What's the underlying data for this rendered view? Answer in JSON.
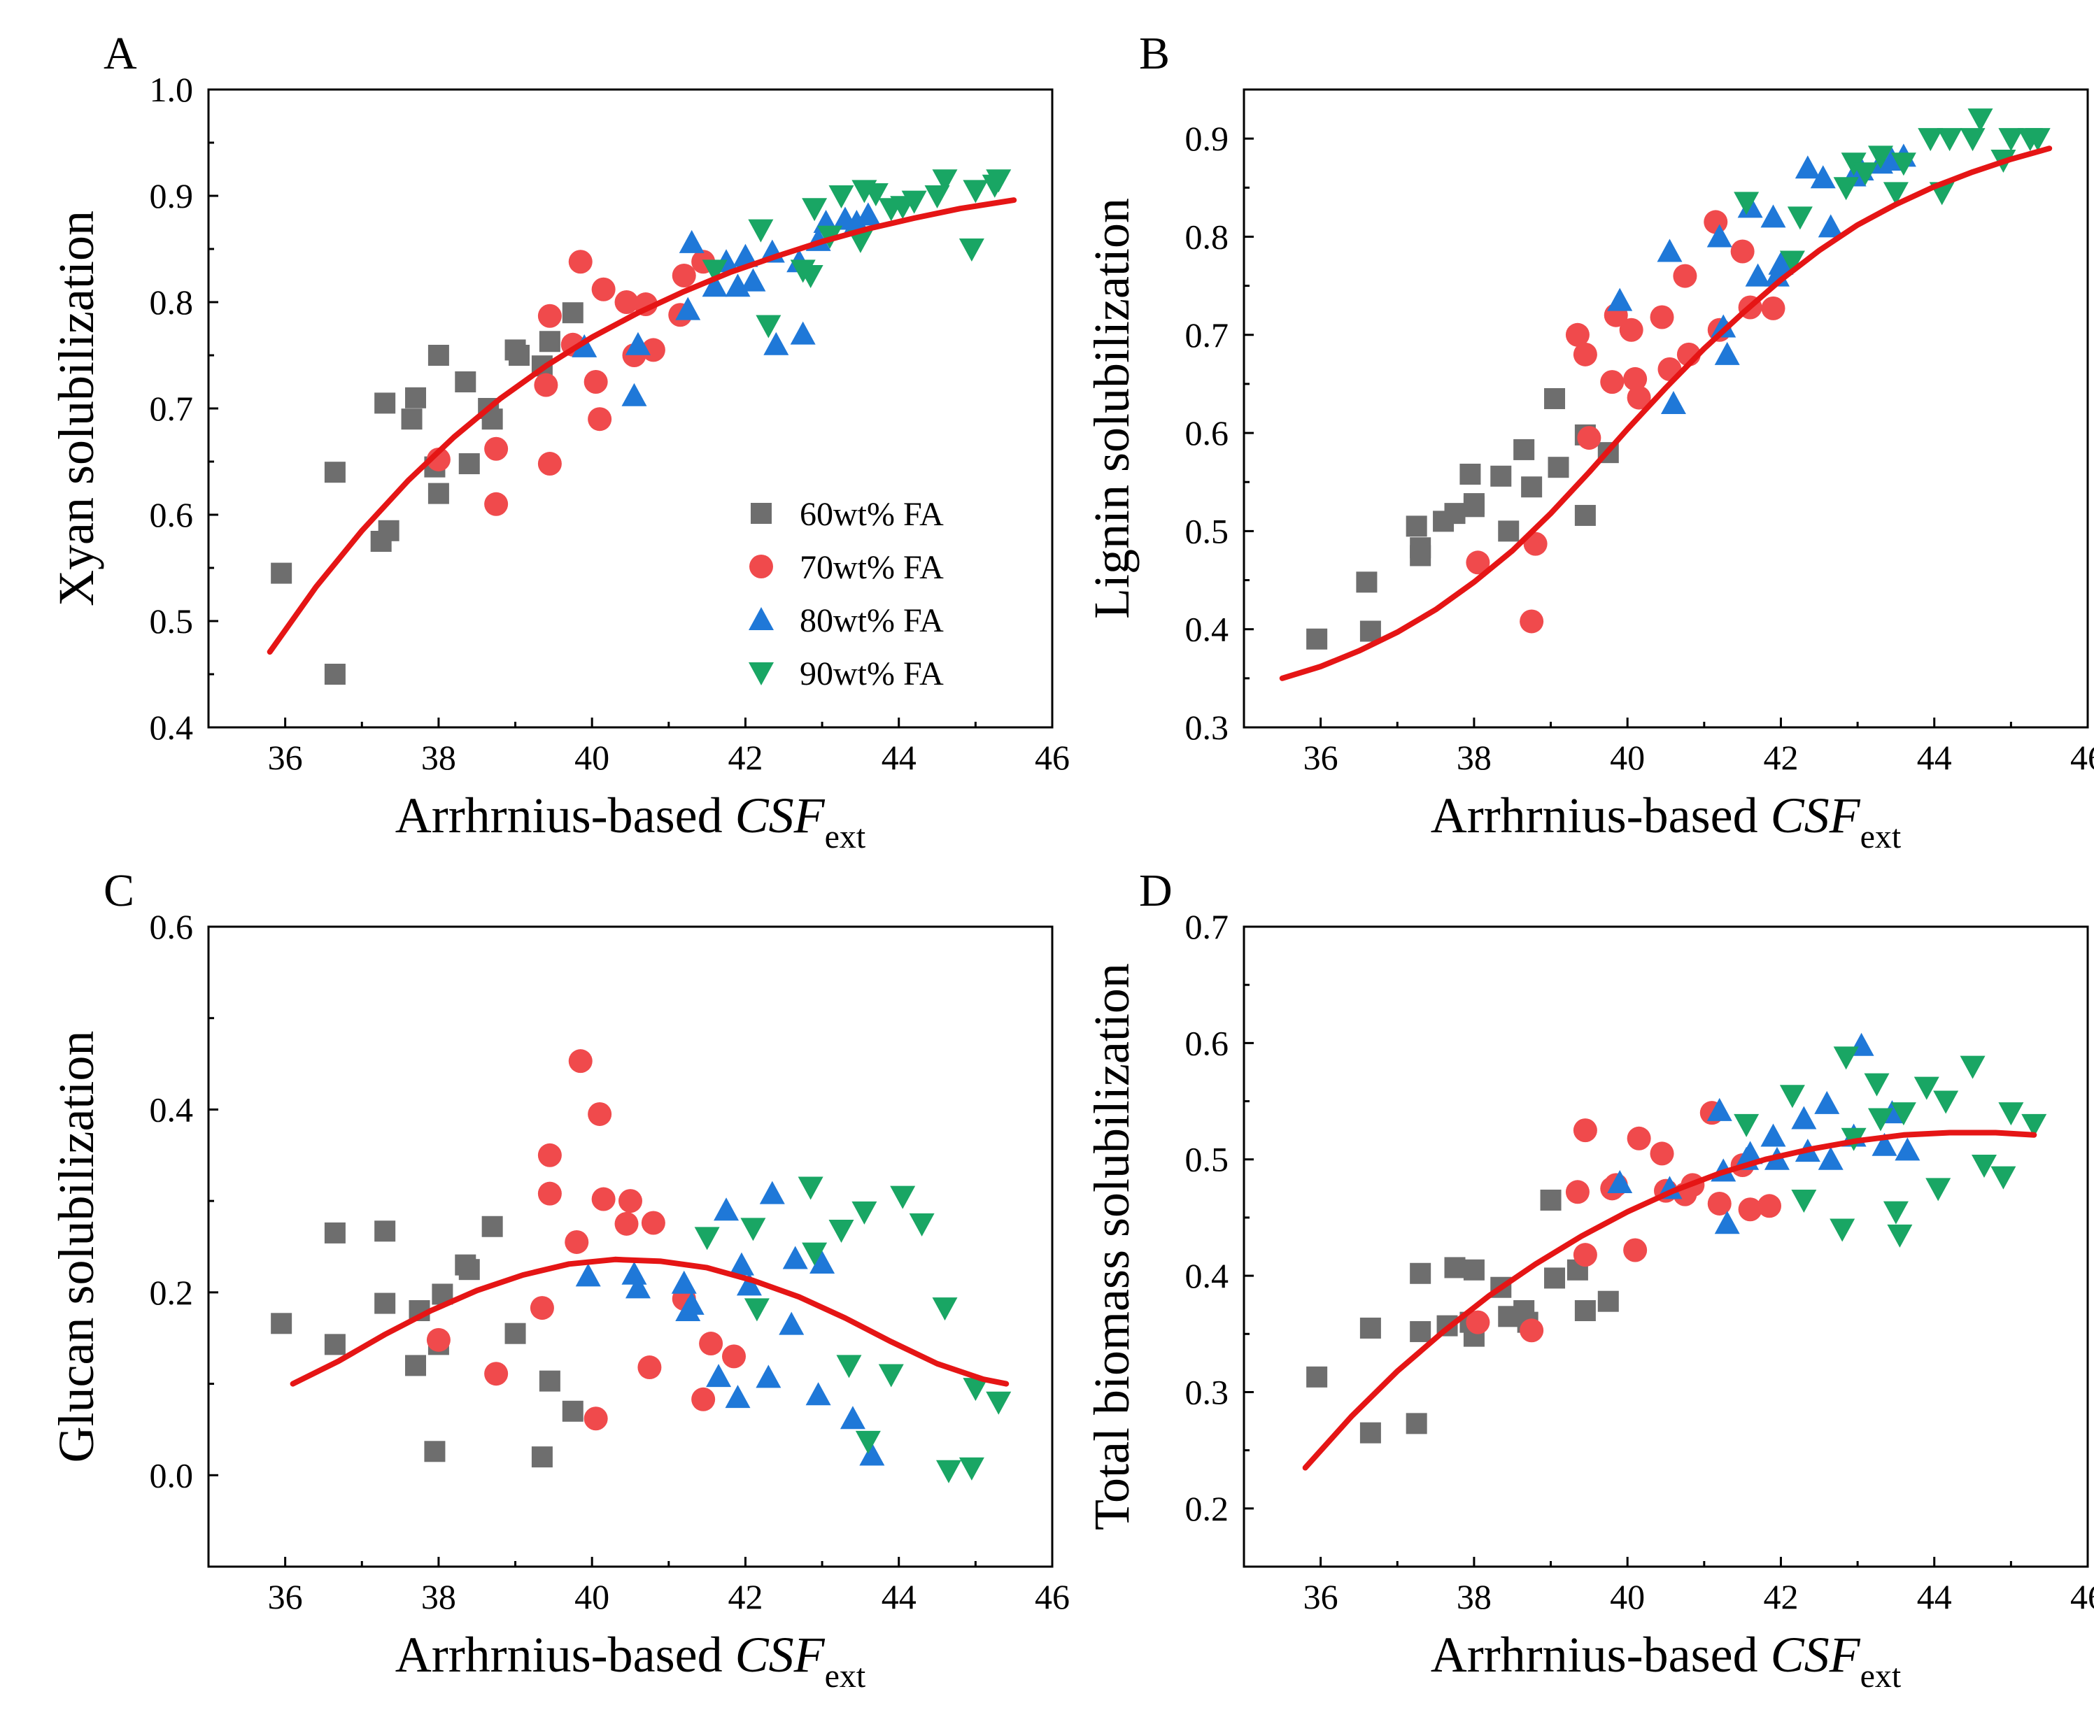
{
  "figure": {
    "colors": {
      "60wt% FA": "#6e6e6e",
      "70wt% FA": "#f04a4c",
      "80wt% FA": "#1f78d8",
      "90wt% FA": "#19a664",
      "fit": "#e51515"
    },
    "legend": {
      "panel": "A",
      "entries": [
        {
          "name": "60wt% FA",
          "marker": "square"
        },
        {
          "name": "70wt% FA",
          "marker": "circle"
        },
        {
          "name": "80wt% FA",
          "marker": "triangle-up"
        },
        {
          "name": "90wt% FA",
          "marker": "triangle-down"
        }
      ]
    }
  },
  "chart_data": [
    {
      "panel": "A",
      "type": "scatter",
      "xlabel": "Arrhrnius-based",
      "xlabel_italic": "CSF",
      "xlabel_sub": "ext",
      "ylabel": "Xyan solubilization",
      "xlim": [
        35,
        46
      ],
      "ylim": [
        0.4,
        1.0
      ],
      "xticks": [
        "36",
        "38",
        "40",
        "42",
        "44",
        "46"
      ],
      "yticks": [
        "0.4",
        "0.5",
        "0.6",
        "0.7",
        "0.8",
        "0.9",
        "1.0"
      ],
      "grid": false,
      "legend_position": "bottom-right",
      "series": [
        {
          "name": "60wt% FA",
          "marker": "square",
          "x": [
            35.95,
            36.65,
            36.65,
            37.25,
            37.3,
            37.35,
            37.65,
            37.7,
            37.95,
            38.0,
            38.0,
            38.35,
            38.4,
            38.65,
            38.7,
            39.0,
            39.05,
            39.35,
            39.45,
            39.75
          ],
          "y": [
            0.545,
            0.45,
            0.64,
            0.575,
            0.705,
            0.585,
            0.69,
            0.71,
            0.645,
            0.75,
            0.62,
            0.725,
            0.648,
            0.7,
            0.69,
            0.755,
            0.75,
            0.74,
            0.763,
            0.79
          ]
        },
        {
          "name": "70wt% FA",
          "marker": "circle",
          "x": [
            38.0,
            38.75,
            38.75,
            39.4,
            39.45,
            39.45,
            39.75,
            39.85,
            40.05,
            40.1,
            40.15,
            40.45,
            40.55,
            40.7,
            40.8,
            41.15,
            41.2,
            41.45
          ],
          "y": [
            0.652,
            0.61,
            0.662,
            0.722,
            0.787,
            0.648,
            0.76,
            0.838,
            0.725,
            0.69,
            0.812,
            0.8,
            0.75,
            0.798,
            0.755,
            0.788,
            0.825,
            0.838
          ]
        },
        {
          "name": "80wt% FA",
          "marker": "triangle-up",
          "x": [
            39.9,
            40.55,
            40.6,
            41.25,
            41.3,
            41.6,
            41.75,
            41.9,
            42.0,
            42.1,
            42.35,
            42.4,
            42.7,
            42.75,
            42.95,
            43.05,
            43.3,
            43.45,
            43.6
          ],
          "y": [
            0.758,
            0.712,
            0.76,
            0.793,
            0.856,
            0.815,
            0.838,
            0.815,
            0.843,
            0.82,
            0.847,
            0.76,
            0.838,
            0.77,
            0.858,
            0.875,
            0.878,
            0.875,
            0.882
          ]
        },
        {
          "name": "90wt% FA",
          "marker": "triangle-down",
          "x": [
            41.6,
            42.2,
            42.3,
            42.75,
            42.85,
            42.9,
            43.1,
            43.25,
            43.5,
            43.55,
            43.7,
            43.9,
            44.05,
            44.2,
            44.5,
            44.6,
            44.95,
            45.0,
            45.25,
            45.3
          ],
          "y": [
            0.83,
            0.868,
            0.778,
            0.83,
            0.825,
            0.888,
            0.862,
            0.9,
            0.858,
            0.905,
            0.902,
            0.888,
            0.89,
            0.895,
            0.9,
            0.915,
            0.85,
            0.905,
            0.91,
            0.915
          ]
        },
        {
          "name": "fit",
          "type": "line",
          "x": [
            35.8,
            36.4,
            37.0,
            37.6,
            38.2,
            38.8,
            39.4,
            40.0,
            40.6,
            41.2,
            41.8,
            42.4,
            43.0,
            43.6,
            44.2,
            44.8,
            45.5
          ],
          "y": [
            0.471,
            0.532,
            0.585,
            0.632,
            0.673,
            0.709,
            0.74,
            0.767,
            0.79,
            0.81,
            0.828,
            0.843,
            0.857,
            0.869,
            0.879,
            0.888,
            0.896
          ]
        }
      ]
    },
    {
      "panel": "B",
      "type": "scatter",
      "xlabel": "Arrhrnius-based",
      "xlabel_italic": "CSF",
      "xlabel_sub": "ext",
      "ylabel": "Lignin solubilization",
      "xlim": [
        35,
        46
      ],
      "ylim": [
        0.3,
        0.95
      ],
      "xticks": [
        "36",
        "38",
        "40",
        "42",
        "44",
        "46"
      ],
      "yticks": [
        "0.3",
        "0.4",
        "0.5",
        "0.6",
        "0.7",
        "0.8",
        "0.9"
      ],
      "grid": false,
      "series": [
        {
          "name": "60wt% FA",
          "marker": "square",
          "x": [
            35.95,
            36.6,
            36.65,
            37.25,
            37.3,
            37.3,
            37.6,
            37.75,
            37.95,
            38.0,
            38.0,
            38.35,
            38.45,
            38.65,
            38.75,
            39.05,
            39.1,
            39.45,
            39.45,
            39.75
          ],
          "y": [
            0.39,
            0.448,
            0.398,
            0.505,
            0.483,
            0.475,
            0.51,
            0.518,
            0.558,
            0.528,
            0.525,
            0.556,
            0.5,
            0.583,
            0.545,
            0.635,
            0.565,
            0.598,
            0.516,
            0.58
          ]
        },
        {
          "name": "70wt% FA",
          "marker": "circle",
          "x": [
            38.05,
            38.75,
            38.8,
            39.35,
            39.45,
            39.5,
            39.8,
            39.85,
            40.05,
            40.1,
            40.15,
            40.45,
            40.55,
            40.75,
            40.8,
            41.15,
            41.2,
            41.5,
            41.6,
            41.9
          ],
          "y": [
            0.468,
            0.408,
            0.487,
            0.7,
            0.68,
            0.595,
            0.652,
            0.72,
            0.705,
            0.655,
            0.636,
            0.718,
            0.665,
            0.76,
            0.68,
            0.815,
            0.705,
            0.785,
            0.728,
            0.727
          ]
        },
        {
          "name": "80wt% FA",
          "marker": "triangle-up",
          "x": [
            39.9,
            40.55,
            40.6,
            41.2,
            41.25,
            41.3,
            41.6,
            41.7,
            41.9,
            41.95,
            42.0,
            42.35,
            42.55,
            42.65,
            42.95,
            43.05,
            43.3,
            43.45,
            43.6
          ],
          "y": [
            0.735,
            0.785,
            0.63,
            0.8,
            0.708,
            0.68,
            0.83,
            0.76,
            0.82,
            0.76,
            0.772,
            0.87,
            0.86,
            0.81,
            0.862,
            0.868,
            0.875,
            0.878,
            0.882
          ]
        },
        {
          "name": "90wt% FA",
          "marker": "triangle-down",
          "x": [
            41.55,
            42.15,
            42.25,
            42.85,
            42.95,
            43.1,
            43.3,
            43.5,
            43.6,
            43.95,
            44.1,
            44.2,
            44.5,
            44.6,
            44.9,
            45.0,
            45.25,
            45.35
          ],
          "y": [
            0.835,
            0.775,
            0.82,
            0.85,
            0.875,
            0.865,
            0.882,
            0.845,
            0.875,
            0.9,
            0.845,
            0.9,
            0.9,
            0.92,
            0.878,
            0.9,
            0.9,
            0.9
          ]
        },
        {
          "name": "fit",
          "type": "line",
          "x": [
            35.5,
            36.0,
            36.5,
            37.0,
            37.5,
            38.0,
            38.5,
            39.0,
            39.5,
            40.0,
            40.5,
            41.0,
            41.5,
            42.0,
            42.5,
            43.0,
            43.5,
            44.0,
            44.5,
            45.0,
            45.5
          ],
          "y": [
            0.35,
            0.362,
            0.378,
            0.397,
            0.42,
            0.448,
            0.48,
            0.518,
            0.56,
            0.604,
            0.646,
            0.686,
            0.722,
            0.756,
            0.786,
            0.812,
            0.833,
            0.851,
            0.866,
            0.879,
            0.89
          ]
        }
      ]
    },
    {
      "panel": "C",
      "type": "scatter",
      "xlabel": "Arrhrnius-based",
      "xlabel_italic": "CSF",
      "xlabel_sub": "ext",
      "ylabel": "Glucan solubilization",
      "xlim": [
        35,
        46
      ],
      "ylim": [
        -0.1,
        0.6
      ],
      "xticks": [
        "36",
        "38",
        "40",
        "42",
        "44",
        "46"
      ],
      "yticks": [
        "0.0",
        "0.2",
        "0.4",
        "0.6"
      ],
      "grid": false,
      "series": [
        {
          "name": "60wt% FA",
          "marker": "square",
          "x": [
            35.95,
            36.65,
            36.65,
            37.3,
            37.3,
            37.7,
            37.75,
            37.95,
            38.0,
            38.05,
            38.35,
            38.4,
            38.7,
            39.0,
            39.35,
            39.45,
            39.75
          ],
          "y": [
            0.166,
            0.265,
            0.143,
            0.267,
            0.188,
            0.12,
            0.18,
            0.026,
            0.143,
            0.198,
            0.23,
            0.225,
            0.272,
            0.155,
            0.02,
            0.103,
            0.07
          ]
        },
        {
          "name": "70wt% FA",
          "marker": "circle",
          "x": [
            38.0,
            38.75,
            39.35,
            39.45,
            39.45,
            39.8,
            39.85,
            40.05,
            40.1,
            40.15,
            40.45,
            40.5,
            40.75,
            40.8,
            41.2,
            41.45,
            41.55,
            41.85
          ],
          "y": [
            0.148,
            0.111,
            0.183,
            0.35,
            0.308,
            0.255,
            0.453,
            0.062,
            0.395,
            0.302,
            0.275,
            0.3,
            0.118,
            0.276,
            0.193,
            0.083,
            0.144,
            0.13
          ]
        },
        {
          "name": "80wt% FA",
          "marker": "triangle-up",
          "x": [
            39.95,
            40.55,
            40.6,
            41.2,
            41.25,
            41.3,
            41.65,
            41.75,
            41.9,
            41.95,
            42.05,
            42.3,
            42.35,
            42.6,
            42.65,
            42.95,
            43.0,
            43.4,
            43.65
          ],
          "y": [
            0.218,
            0.22,
            0.205,
            0.21,
            0.18,
            0.187,
            0.108,
            0.29,
            0.085,
            0.23,
            0.208,
            0.107,
            0.308,
            0.165,
            0.237,
            0.088,
            0.232,
            0.062,
            0.022
          ]
        },
        {
          "name": "90wt% FA",
          "marker": "triangle-down",
          "x": [
            41.5,
            42.1,
            42.15,
            42.85,
            42.9,
            43.25,
            43.35,
            43.55,
            43.6,
            43.9,
            44.05,
            44.3,
            44.6,
            44.65,
            44.95,
            45.0,
            45.3
          ],
          "y": [
            0.26,
            0.27,
            0.182,
            0.315,
            0.243,
            0.268,
            0.12,
            0.288,
            0.037,
            0.11,
            0.305,
            0.275,
            0.183,
            0.005,
            0.008,
            0.095,
            0.08
          ]
        },
        {
          "name": "fit",
          "type": "line",
          "x": [
            36.1,
            36.7,
            37.3,
            37.9,
            38.5,
            39.1,
            39.7,
            40.3,
            40.9,
            41.5,
            42.1,
            42.7,
            43.3,
            43.9,
            44.5,
            45.1,
            45.4
          ],
          "y": [
            0.1,
            0.125,
            0.154,
            0.18,
            0.202,
            0.219,
            0.231,
            0.236,
            0.234,
            0.227,
            0.213,
            0.195,
            0.172,
            0.146,
            0.122,
            0.105,
            0.1
          ]
        }
      ]
    },
    {
      "panel": "D",
      "type": "scatter",
      "xlabel": "Arrhrnius-based",
      "xlabel_italic": "CSF",
      "xlabel_sub": "ext",
      "ylabel": "Total biomass solubilization",
      "xlim": [
        35,
        46
      ],
      "ylim": [
        0.15,
        0.7
      ],
      "xticks": [
        "36",
        "38",
        "40",
        "42",
        "44",
        "46"
      ],
      "yticks": [
        "0.2",
        "0.3",
        "0.4",
        "0.5",
        "0.6",
        "0.7"
      ],
      "grid": false,
      "series": [
        {
          "name": "60wt% FA",
          "marker": "square",
          "x": [
            35.95,
            36.65,
            36.65,
            37.25,
            37.3,
            37.3,
            37.65,
            37.75,
            37.95,
            38.0,
            38.0,
            38.35,
            38.45,
            38.65,
            38.7,
            39.0,
            39.05,
            39.35,
            39.45,
            39.75
          ],
          "y": [
            0.313,
            0.265,
            0.355,
            0.273,
            0.352,
            0.402,
            0.357,
            0.407,
            0.36,
            0.405,
            0.348,
            0.39,
            0.365,
            0.37,
            0.36,
            0.465,
            0.398,
            0.405,
            0.37,
            0.378
          ]
        },
        {
          "name": "70wt% FA",
          "marker": "circle",
          "x": [
            38.05,
            38.75,
            39.35,
            39.45,
            39.45,
            39.8,
            39.85,
            40.1,
            40.15,
            40.45,
            40.5,
            40.75,
            40.85,
            41.1,
            41.2,
            41.5,
            41.6,
            41.85
          ],
          "y": [
            0.36,
            0.353,
            0.472,
            0.418,
            0.525,
            0.475,
            0.478,
            0.422,
            0.518,
            0.505,
            0.473,
            0.47,
            0.478,
            0.54,
            0.462,
            0.495,
            0.457,
            0.46
          ]
        },
        {
          "name": "80wt% FA",
          "marker": "triangle-up",
          "x": [
            39.9,
            40.55,
            41.2,
            41.25,
            41.3,
            41.55,
            41.6,
            41.9,
            41.95,
            42.3,
            42.35,
            42.6,
            42.65,
            42.95,
            43.05,
            43.35,
            43.45,
            43.65
          ],
          "y": [
            0.48,
            0.475,
            0.542,
            0.49,
            0.445,
            0.5,
            0.505,
            0.52,
            0.5,
            0.535,
            0.507,
            0.548,
            0.5,
            0.52,
            0.598,
            0.512,
            0.54,
            0.508
          ]
        },
        {
          "name": "90wt% FA",
          "marker": "triangle-down",
          "x": [
            41.55,
            42.15,
            42.3,
            42.8,
            42.85,
            42.95,
            43.25,
            43.3,
            43.5,
            43.55,
            43.6,
            43.9,
            44.05,
            44.15,
            44.5,
            44.65,
            44.9,
            45.0,
            45.3
          ],
          "y": [
            0.53,
            0.555,
            0.465,
            0.44,
            0.588,
            0.518,
            0.565,
            0.535,
            0.455,
            0.435,
            0.54,
            0.562,
            0.475,
            0.55,
            0.58,
            0.495,
            0.485,
            0.54,
            0.53
          ]
        },
        {
          "name": "fit",
          "type": "line",
          "x": [
            35.8,
            36.4,
            37.0,
            37.6,
            38.2,
            38.8,
            39.4,
            40.0,
            40.6,
            41.2,
            41.8,
            42.4,
            43.0,
            43.6,
            44.2,
            44.8,
            45.3
          ],
          "y": [
            0.235,
            0.279,
            0.318,
            0.352,
            0.383,
            0.41,
            0.434,
            0.455,
            0.473,
            0.488,
            0.5,
            0.509,
            0.516,
            0.521,
            0.523,
            0.523,
            0.521
          ]
        }
      ]
    }
  ]
}
